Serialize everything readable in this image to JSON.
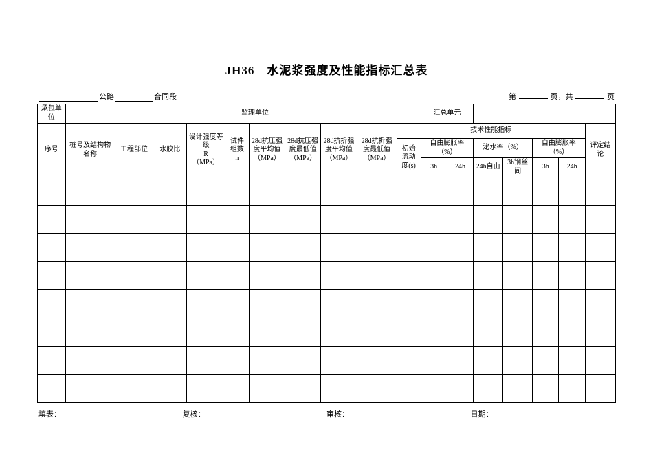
{
  "title": "JH36 水泥浆强度及性能指标汇总表",
  "subtitle": {
    "road_label": "公路",
    "section_label": "合同段",
    "page_prefix": "第",
    "page_mid": "页，共",
    "page_suffix": "页"
  },
  "header": {
    "contractor_label": "承包单位",
    "supervisor_label": "监理单位",
    "summary_unit_label": "汇总单元",
    "seq_label": "序号",
    "pile_name_label": "桩号及结构物名称",
    "part_label": "工程部位",
    "water_ratio_label": "水胶比",
    "design_strength_label": "设计强度等级\nR\n（MPa）",
    "sample_count_label": "试件组数\nn",
    "comp_avg_label": "28d抗压强度平均值（MPa）",
    "comp_min_label": "28d抗压强度最低值（MPa）",
    "flex_avg_label": "28d抗折强度平均值（MPa）",
    "flex_min_label": "28d抗折强度最低值（MPa）",
    "tech_perf_label": "技术性能指标",
    "initial_flow_label": "初始流动度(s)",
    "expansion1_label": "自由膨胀率（%）",
    "bleed_label": "泌水率（%）",
    "expansion2_label": "自由膨胀率（%）",
    "col_3h": "3h",
    "col_24h": "24h",
    "col_24h_free": "24h自由",
    "col_3h_wire": "3h钢丝间",
    "verdict_label": "评定结论"
  },
  "footer": {
    "fill_label": "填表：",
    "review_label": "复核：",
    "audit_label": "审核：",
    "date_label": "日期："
  },
  "data_row_count": 8,
  "colors": {
    "background": "#ffffff",
    "text": "#000000",
    "border": "#000000"
  }
}
